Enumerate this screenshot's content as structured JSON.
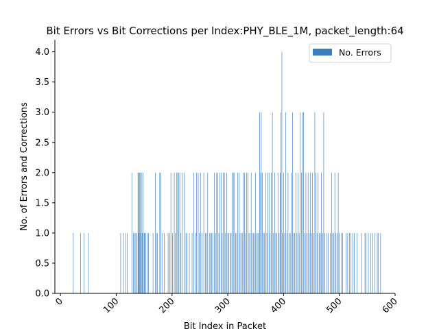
{
  "chart_data": {
    "type": "bar",
    "title": "Bit Errors vs Bit Corrections per Index:PHY_BLE_1M, packet_length:64",
    "xlabel": "Bit Index in Packet",
    "ylabel": "No. of Errors and Corrections",
    "xlim": [
      -10,
      600
    ],
    "ylim": [
      0,
      4.2
    ],
    "x_ticks": [
      0,
      100,
      200,
      300,
      400,
      500,
      600
    ],
    "y_ticks": [
      0.0,
      0.5,
      1.0,
      1.5,
      2.0,
      2.5,
      3.0,
      3.5,
      4.0
    ],
    "grid": false,
    "legend_position": "top-right",
    "series": [
      {
        "name": "No. Errors",
        "color": "#3a7ebf",
        "points": [
          [
            23,
            1
          ],
          [
            36,
            1
          ],
          [
            42,
            1
          ],
          [
            50,
            1
          ],
          [
            108,
            1
          ],
          [
            113,
            1
          ],
          [
            117,
            1
          ],
          [
            120,
            1
          ],
          [
            128,
            2
          ],
          [
            131,
            1
          ],
          [
            133,
            1
          ],
          [
            135,
            1
          ],
          [
            137,
            1
          ],
          [
            139,
            2
          ],
          [
            140,
            2
          ],
          [
            141,
            1
          ],
          [
            142,
            2
          ],
          [
            143,
            2
          ],
          [
            144,
            1
          ],
          [
            146,
            2
          ],
          [
            147,
            1
          ],
          [
            148,
            2
          ],
          [
            150,
            1
          ],
          [
            151,
            1
          ],
          [
            153,
            1
          ],
          [
            156,
            1
          ],
          [
            158,
            1
          ],
          [
            166,
            1
          ],
          [
            170,
            2
          ],
          [
            172,
            1
          ],
          [
            174,
            1
          ],
          [
            178,
            2
          ],
          [
            180,
            2
          ],
          [
            183,
            1
          ],
          [
            186,
            1
          ],
          [
            193,
            1
          ],
          [
            196,
            1
          ],
          [
            198,
            2
          ],
          [
            201,
            1
          ],
          [
            204,
            2
          ],
          [
            206,
            1
          ],
          [
            208,
            2
          ],
          [
            210,
            2
          ],
          [
            212,
            2
          ],
          [
            214,
            2
          ],
          [
            216,
            1
          ],
          [
            218,
            2
          ],
          [
            222,
            2
          ],
          [
            225,
            1
          ],
          [
            227,
            1
          ],
          [
            231,
            1
          ],
          [
            236,
            1
          ],
          [
            239,
            2
          ],
          [
            242,
            1
          ],
          [
            244,
            2
          ],
          [
            247,
            2
          ],
          [
            249,
            1
          ],
          [
            251,
            2
          ],
          [
            254,
            1
          ],
          [
            257,
            2
          ],
          [
            260,
            1
          ],
          [
            262,
            1
          ],
          [
            264,
            2
          ],
          [
            267,
            1
          ],
          [
            269,
            1
          ],
          [
            271,
            1
          ],
          [
            273,
            1
          ],
          [
            276,
            2
          ],
          [
            278,
            1
          ],
          [
            280,
            2
          ],
          [
            282,
            2
          ],
          [
            284,
            1
          ],
          [
            286,
            2
          ],
          [
            288,
            2
          ],
          [
            290,
            1
          ],
          [
            292,
            2
          ],
          [
            294,
            2
          ],
          [
            296,
            1
          ],
          [
            298,
            2
          ],
          [
            300,
            1
          ],
          [
            302,
            1
          ],
          [
            304,
            1
          ],
          [
            306,
            1
          ],
          [
            308,
            2
          ],
          [
            310,
            2
          ],
          [
            312,
            2
          ],
          [
            314,
            1
          ],
          [
            316,
            1
          ],
          [
            318,
            2
          ],
          [
            320,
            2
          ],
          [
            322,
            1
          ],
          [
            324,
            1
          ],
          [
            326,
            1
          ],
          [
            328,
            2
          ],
          [
            330,
            2
          ],
          [
            332,
            1
          ],
          [
            334,
            2
          ],
          [
            336,
            2
          ],
          [
            338,
            1
          ],
          [
            340,
            1
          ],
          [
            342,
            2
          ],
          [
            344,
            1
          ],
          [
            346,
            1
          ],
          [
            348,
            1
          ],
          [
            350,
            2
          ],
          [
            352,
            1
          ],
          [
            354,
            1
          ],
          [
            356,
            1
          ],
          [
            357,
            3
          ],
          [
            359,
            2
          ],
          [
            360,
            3
          ],
          [
            362,
            2
          ],
          [
            364,
            1
          ],
          [
            366,
            1
          ],
          [
            368,
            2
          ],
          [
            370,
            1
          ],
          [
            372,
            2
          ],
          [
            374,
            2
          ],
          [
            376,
            1
          ],
          [
            378,
            2
          ],
          [
            380,
            3
          ],
          [
            382,
            1
          ],
          [
            384,
            2
          ],
          [
            386,
            1
          ],
          [
            388,
            1
          ],
          [
            390,
            2
          ],
          [
            392,
            1
          ],
          [
            394,
            2
          ],
          [
            395,
            3
          ],
          [
            397,
            4
          ],
          [
            398,
            1
          ],
          [
            400,
            2
          ],
          [
            402,
            1
          ],
          [
            404,
            3
          ],
          [
            406,
            1
          ],
          [
            408,
            2
          ],
          [
            410,
            1
          ],
          [
            412,
            1
          ],
          [
            414,
            2
          ],
          [
            416,
            3
          ],
          [
            418,
            1
          ],
          [
            420,
            1
          ],
          [
            422,
            2
          ],
          [
            424,
            1
          ],
          [
            426,
            2
          ],
          [
            428,
            1
          ],
          [
            430,
            3
          ],
          [
            432,
            2
          ],
          [
            434,
            3
          ],
          [
            436,
            3
          ],
          [
            438,
            1
          ],
          [
            440,
            2
          ],
          [
            442,
            1
          ],
          [
            444,
            2
          ],
          [
            446,
            1
          ],
          [
            448,
            2
          ],
          [
            450,
            1
          ],
          [
            452,
            2
          ],
          [
            454,
            1
          ],
          [
            456,
            3
          ],
          [
            458,
            2
          ],
          [
            460,
            1
          ],
          [
            462,
            2
          ],
          [
            464,
            1
          ],
          [
            466,
            1
          ],
          [
            468,
            2
          ],
          [
            470,
            1
          ],
          [
            472,
            3
          ],
          [
            474,
            1
          ],
          [
            478,
            1
          ],
          [
            480,
            1
          ],
          [
            484,
            1
          ],
          [
            486,
            2
          ],
          [
            488,
            1
          ],
          [
            490,
            1
          ],
          [
            492,
            2
          ],
          [
            494,
            1
          ],
          [
            496,
            1
          ],
          [
            498,
            2
          ],
          [
            500,
            1
          ],
          [
            504,
            1
          ],
          [
            506,
            1
          ],
          [
            512,
            1
          ],
          [
            515,
            1
          ],
          [
            518,
            1
          ],
          [
            521,
            1
          ],
          [
            524,
            1
          ],
          [
            527,
            1
          ],
          [
            532,
            1
          ],
          [
            540,
            1
          ],
          [
            546,
            1
          ],
          [
            548,
            1
          ],
          [
            552,
            1
          ],
          [
            556,
            1
          ],
          [
            560,
            1
          ],
          [
            564,
            1
          ],
          [
            568,
            1
          ],
          [
            570,
            1
          ],
          [
            574,
            1
          ]
        ]
      }
    ]
  }
}
